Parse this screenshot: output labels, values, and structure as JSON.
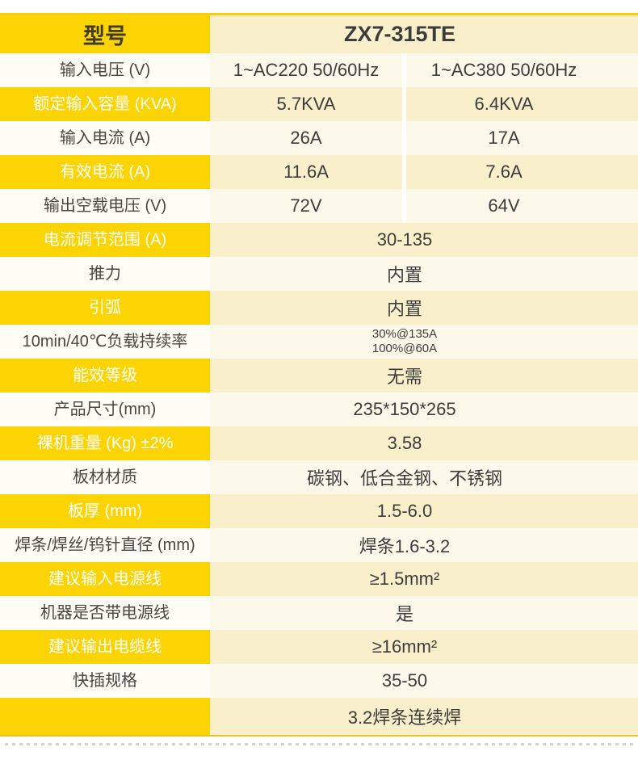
{
  "colors": {
    "yellow": "#fcd303",
    "cream": "#faefcb",
    "light_cream": "#fdf9ea",
    "white_label_bg": "#fffdf5",
    "dark_text": "#3c3c3c",
    "white_text": "#ffffff",
    "column_divider": "#ffffff",
    "border_yellow": "#e9c426",
    "dot_gray": "#d2d2d2"
  },
  "spec_table": {
    "header": {
      "label": "型号",
      "value": "ZX7-315TE"
    },
    "rows": [
      {
        "label": "输入电压 (V)",
        "values": [
          "1~AC220 50/60Hz",
          "1~AC380 50/60Hz"
        ],
        "band": "white"
      },
      {
        "label": "额定输入容量 (KVA)",
        "values": [
          "5.7KVA",
          "6.4KVA"
        ],
        "band": "yellow"
      },
      {
        "label": "输入电流 (A)",
        "values": [
          "26A",
          "17A"
        ],
        "band": "white"
      },
      {
        "label": "有效电流 (A)",
        "values": [
          "11.6A",
          "7.6A"
        ],
        "band": "yellow"
      },
      {
        "label": "输出空载电压 (V)",
        "values": [
          "72V",
          "64V"
        ],
        "band": "white"
      },
      {
        "label": "电流调节范围 (A)",
        "values": [
          "30-135"
        ],
        "band": "yellow"
      },
      {
        "label": "推力",
        "values": [
          "内置"
        ],
        "band": "white"
      },
      {
        "label": "引弧",
        "values": [
          "内置"
        ],
        "band": "yellow"
      },
      {
        "label": "10min/40℃负载持续率",
        "values": [
          "30%@135A",
          "100%@60A"
        ],
        "band": "white",
        "stacked": true
      },
      {
        "label": "能效等级",
        "values": [
          "无需"
        ],
        "band": "yellow"
      },
      {
        "label": "产品尺寸(mm)",
        "values": [
          "235*150*265"
        ],
        "band": "white"
      },
      {
        "label": "裸机重量 (Kg) ±2%",
        "values": [
          "3.58"
        ],
        "band": "yellow"
      },
      {
        "label": "板材材质",
        "values": [
          "碳钢、低合金钢、不锈钢"
        ],
        "band": "white"
      },
      {
        "label": "板厚 (mm)",
        "values": [
          "1.5-6.0"
        ],
        "band": "yellow"
      },
      {
        "label": "焊条/焊丝/钨针直径 (mm)",
        "values": [
          "焊条1.6-3.2"
        ],
        "band": "white"
      },
      {
        "label": "建议输入电源线",
        "values": [
          "≥1.5mm²"
        ],
        "band": "yellow"
      },
      {
        "label": "机器是否带电源线",
        "values": [
          "是"
        ],
        "band": "white"
      },
      {
        "label": "建议输出电缆线",
        "values": [
          "≥16mm²"
        ],
        "band": "yellow"
      },
      {
        "label": "快插规格",
        "values": [
          "35-50"
        ],
        "band": "white"
      },
      {
        "label": "",
        "values": [
          "3.2焊条连续焊"
        ],
        "band": "yellow"
      }
    ]
  }
}
